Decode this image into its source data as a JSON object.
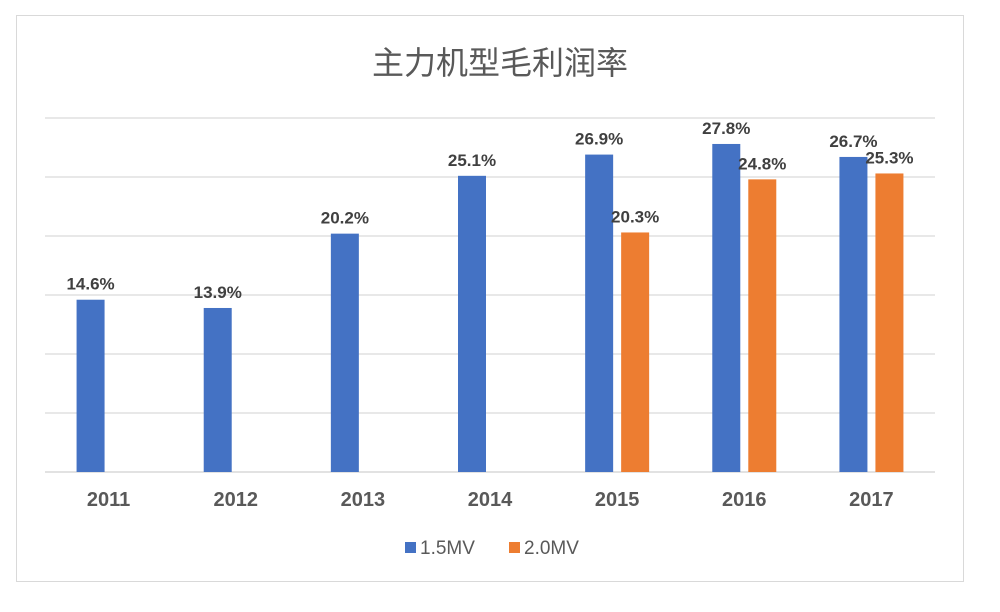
{
  "chart_data": {
    "type": "bar",
    "title": "主力机型毛利润率",
    "categories": [
      "2011",
      "2012",
      "2013",
      "2014",
      "2015",
      "2016",
      "2017"
    ],
    "series": [
      {
        "name": "1.5MV",
        "color": "#4472c4",
        "values": [
          14.6,
          13.9,
          20.2,
          25.1,
          26.9,
          27.8,
          26.7
        ],
        "labels": [
          "14.6%",
          "13.9%",
          "20.2%",
          "25.1%",
          "26.9%",
          "27.8%",
          "26.7%"
        ]
      },
      {
        "name": "2.0MV",
        "color": "#ed7d31",
        "values": [
          null,
          null,
          null,
          null,
          20.3,
          24.8,
          25.3
        ],
        "labels": [
          null,
          null,
          null,
          null,
          "20.3%",
          "24.8%",
          "25.3%"
        ]
      }
    ],
    "ylim": [
      0,
      30
    ],
    "ygrid_step": 5,
    "grid": true,
    "y_axis_labels_shown": false,
    "legend": "bottom",
    "xlabel": "",
    "ylabel": ""
  }
}
